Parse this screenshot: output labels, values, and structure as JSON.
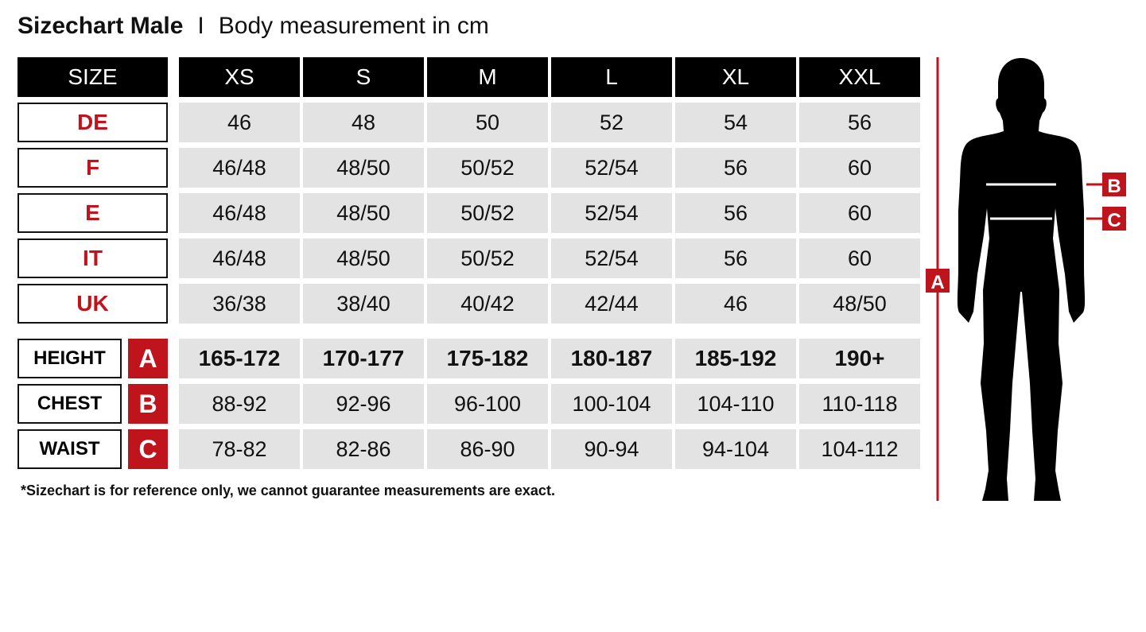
{
  "title": {
    "main": "Sizechart Male",
    "separator": "I",
    "subtitle": "Body measurement in cm"
  },
  "table": {
    "corner_label": "SIZE",
    "sizes": [
      "XS",
      "S",
      "M",
      "L",
      "XL",
      "XXL"
    ],
    "regions": [
      {
        "label": "DE",
        "values": [
          "46",
          "48",
          "50",
          "52",
          "54",
          "56"
        ]
      },
      {
        "label": "F",
        "values": [
          "46/48",
          "48/50",
          "50/52",
          "52/54",
          "56",
          "60"
        ]
      },
      {
        "label": "E",
        "values": [
          "46/48",
          "48/50",
          "50/52",
          "52/54",
          "56",
          "60"
        ]
      },
      {
        "label": "IT",
        "values": [
          "46/48",
          "48/50",
          "50/52",
          "52/54",
          "56",
          "60"
        ]
      },
      {
        "label": "UK",
        "values": [
          "36/38",
          "38/40",
          "40/42",
          "42/44",
          "46",
          "48/50"
        ]
      }
    ],
    "measurements": [
      {
        "label": "HEIGHT",
        "badge": "A",
        "values": [
          "165-172",
          "170-177",
          "175-182",
          "180-187",
          "185-192",
          "190+"
        ]
      },
      {
        "label": "CHEST",
        "badge": "B",
        "values": [
          "88-92",
          "92-96",
          "96-100",
          "100-104",
          "104-110",
          "110-118"
        ]
      },
      {
        "label": "WAIST",
        "badge": "C",
        "values": [
          "78-82",
          "82-86",
          "86-90",
          "90-94",
          "94-104",
          "104-112"
        ]
      }
    ]
  },
  "footnote": "*Sizechart is for reference only, we cannot guarantee measurements are exact.",
  "figure": {
    "height_marker": "A",
    "chest_marker": "B",
    "waist_marker": "C"
  },
  "colors": {
    "accent": "#c0141c",
    "header_bg": "#000000",
    "cell_bg": "#e3e3e3"
  }
}
